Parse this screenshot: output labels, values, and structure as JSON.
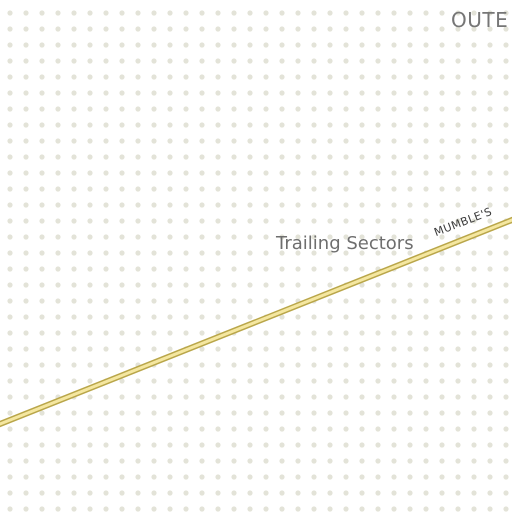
{
  "map": {
    "background_color": "#ffffff",
    "dot_color": "#e3e3d8",
    "labels": {
      "outer_region": "OUTE",
      "area": "Trailing Sectors",
      "road": "MUMBLE'S"
    },
    "road": {
      "fill_color": "#f5e7a0",
      "casing_color": "#b9a64a"
    }
  }
}
